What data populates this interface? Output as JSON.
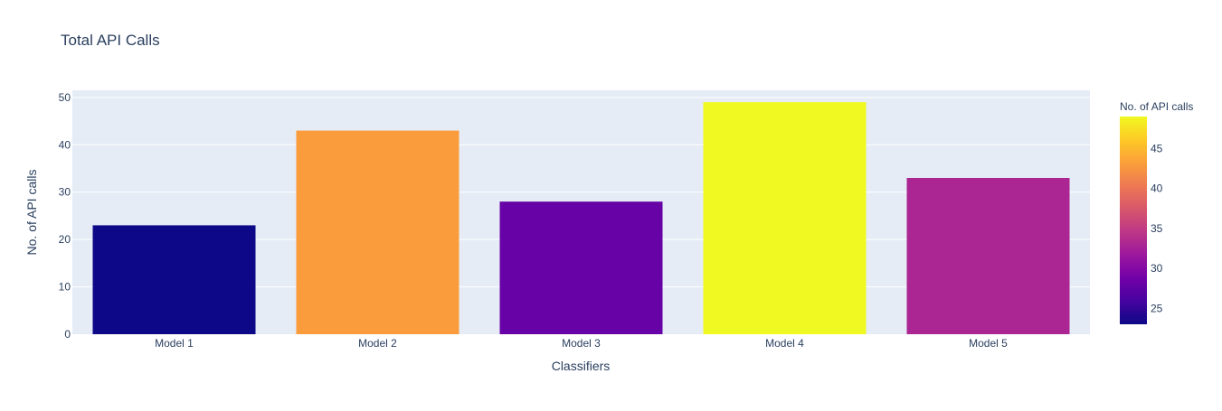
{
  "chart_data": {
    "type": "bar",
    "title": "Total API Calls",
    "xlabel": "Classifiers",
    "ylabel": "No. of API calls",
    "categories": [
      "Model 1",
      "Model 2",
      "Model 3",
      "Model 4",
      "Model 5"
    ],
    "values": [
      23,
      43,
      28,
      49,
      33
    ],
    "ylim": [
      0,
      51.5
    ],
    "yticks": [
      0,
      10,
      20,
      30,
      40,
      50
    ],
    "grid": true,
    "colorbar": {
      "title": "No. of API calls",
      "range": [
        23,
        49
      ],
      "ticks": [
        25,
        30,
        35,
        40,
        45
      ],
      "colorscale": "plasma"
    },
    "colors": {
      "plot_bg": "#e5ecf6",
      "grid": "#ffffff",
      "text": "#2a3f5f"
    }
  }
}
